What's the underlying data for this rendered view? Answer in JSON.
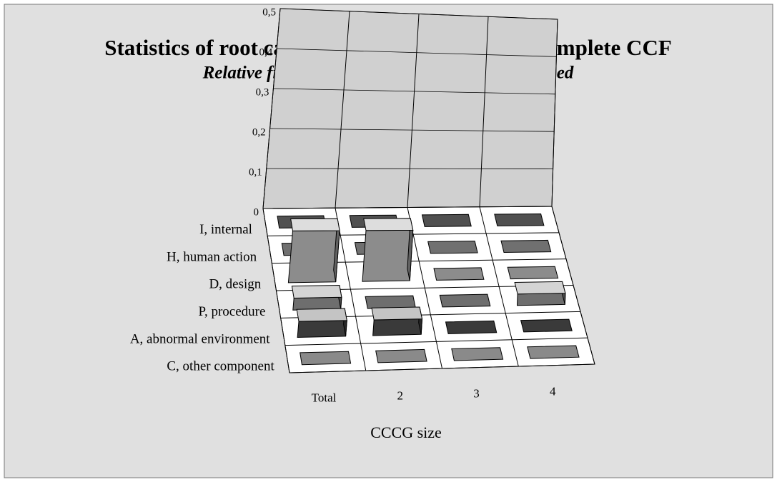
{
  "chart_data": {
    "type": "bar3d",
    "title": "Statistics of root causes for ICDE events with complete CCF",
    "subtitle": "Relative frequencies for failure to run, normalised",
    "xlabel": "CCCG size",
    "categories": [
      "Total",
      "2",
      "3",
      "4"
    ],
    "series": [
      {
        "name": "I, internal",
        "color": "#505050",
        "values": [
          0,
          0,
          0,
          0
        ]
      },
      {
        "name": "H, human action",
        "color": "#707070",
        "values": [
          0,
          0,
          0,
          0
        ]
      },
      {
        "name": "D, design",
        "color": "#8c8c8c",
        "values": [
          0.13,
          0.13,
          0,
          0
        ]
      },
      {
        "name": "P, procedure",
        "color": "#6e6e6e",
        "values": [
          0.03,
          0,
          0,
          0.03
        ]
      },
      {
        "name": "A, abnormal environment",
        "color": "#3a3a3a",
        "values": [
          0.04,
          0.04,
          0,
          0
        ]
      },
      {
        "name": "C, other component",
        "color": "#8a8a8a",
        "values": [
          0,
          0,
          0,
          0
        ]
      }
    ],
    "ylim": [
      0,
      0.5
    ],
    "yticks": [
      0,
      {
        "value": 0.1,
        "label": "0,1"
      },
      {
        "value": 0.2,
        "label": "0,2"
      },
      {
        "value": 0.3,
        "label": "0,3"
      },
      {
        "value": 0.4,
        "label": "0,4"
      },
      {
        "value": 0.5,
        "label": "0,5"
      }
    ],
    "grid": true
  }
}
